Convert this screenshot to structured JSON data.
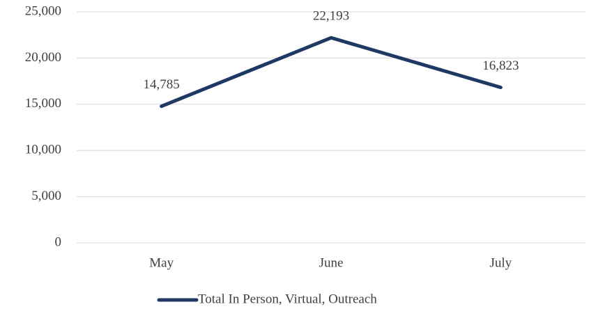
{
  "chart_data": {
    "type": "line",
    "categories": [
      "May",
      "June",
      "July"
    ],
    "series": [
      {
        "name": "Total In Person, Virtual, Outreach",
        "color": "#1f3864",
        "values": [
          14785,
          22193,
          16823
        ],
        "value_labels": [
          "14,785",
          "22,193",
          "16,823"
        ]
      }
    ],
    "ylim": [
      0,
      25000
    ],
    "yticks": [
      0,
      {
        "value": 5000,
        "label": "5,000"
      },
      {
        "value": 10000,
        "label": "10,000"
      },
      {
        "value": 15000,
        "label": "15,000"
      },
      {
        "value": 20000,
        "label": "20,000"
      },
      {
        "value": 25000,
        "label": "25,000"
      }
    ],
    "grid": true,
    "legend": "bottom"
  }
}
